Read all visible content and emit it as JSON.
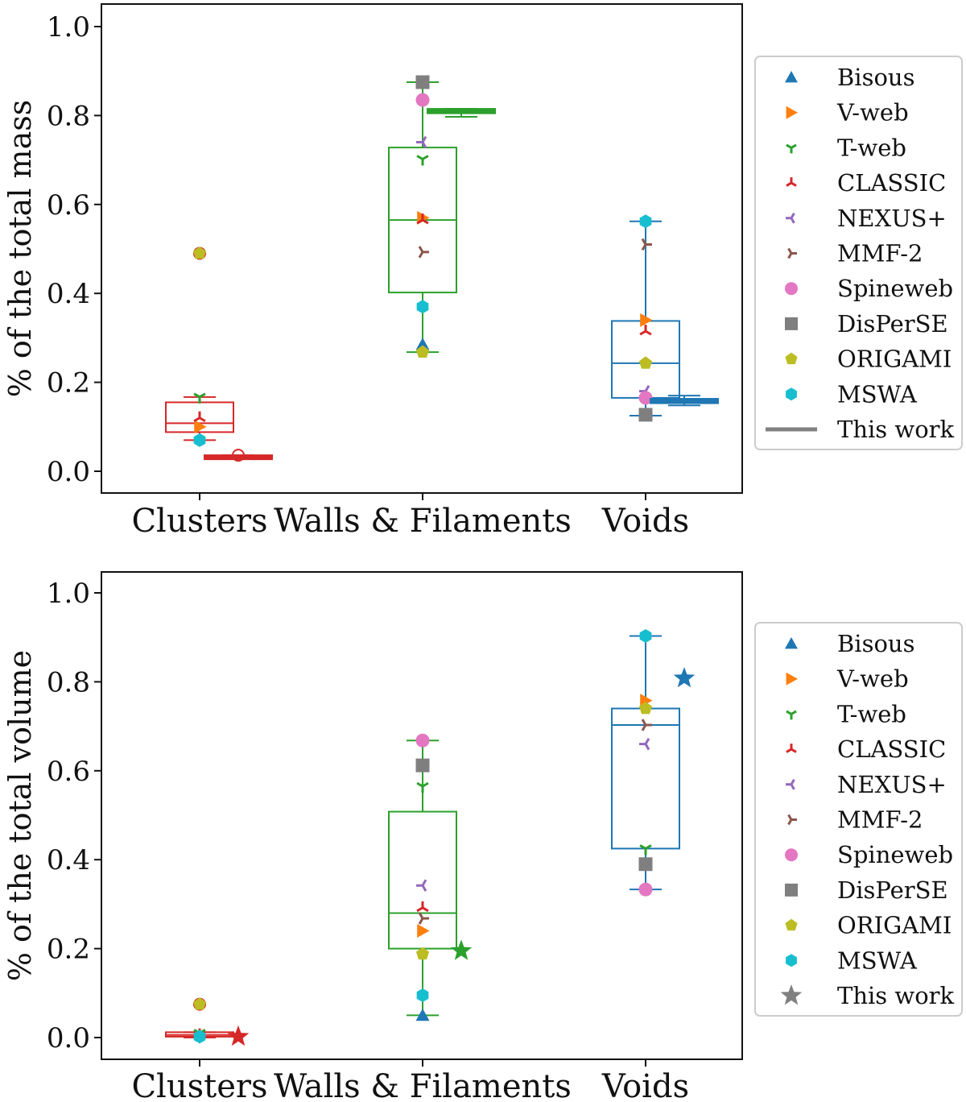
{
  "chart_data": [
    {
      "type": "box+scatter",
      "title": "",
      "ylabel": "% of the total mass",
      "xlabel": "",
      "ylim": [
        -0.05,
        1.05
      ],
      "yticks": [
        "0.0",
        "0.2",
        "0.4",
        "0.6",
        "0.8",
        "1.0"
      ],
      "categories": [
        "Clusters",
        "Walls & Filaments",
        "Voids"
      ],
      "category_colors": [
        "#d62728",
        "#2ca02c",
        "#1f77b4"
      ],
      "boxes": [
        {
          "category": "Clusters",
          "q1": 0.088,
          "median": 0.108,
          "q3": 0.155,
          "whisker_low": 0.07,
          "whisker_high": 0.167,
          "outliers": [
            0.49
          ]
        },
        {
          "category": "Walls & Filaments",
          "q1": 0.402,
          "median": 0.565,
          "q3": 0.728,
          "whisker_low": 0.268,
          "whisker_high": 0.875,
          "outliers": []
        },
        {
          "category": "Voids",
          "q1": 0.165,
          "median": 0.243,
          "q3": 0.338,
          "whisker_low": 0.125,
          "whisker_high": 0.562,
          "outliers": []
        }
      ],
      "methods": [
        {
          "name": "Bisous",
          "marker": "triangle-up",
          "color": "#1f77b4",
          "values": [
            null,
            0.285,
            null
          ]
        },
        {
          "name": "V-web",
          "marker": "triangle-right",
          "color": "#ff7f0e",
          "values": [
            0.1,
            0.57,
            0.34
          ]
        },
        {
          "name": "T-web",
          "marker": "tri-down",
          "color": "#2ca02c",
          "values": [
            0.167,
            0.702,
            null
          ]
        },
        {
          "name": "CLASSIC",
          "marker": "tri-up",
          "color": "#d62728",
          "values": [
            0.12,
            0.565,
            0.315
          ]
        },
        {
          "name": "NEXUS+",
          "marker": "tri-left",
          "color": "#9467bd",
          "values": [
            null,
            0.74,
            0.18
          ]
        },
        {
          "name": "MMF-2",
          "marker": "tri-right",
          "color": "#8c564b",
          "values": [
            null,
            0.493,
            0.51
          ]
        },
        {
          "name": "Spineweb",
          "marker": "octagon",
          "color": "#e377c2",
          "values": [
            null,
            0.835,
            0.165
          ]
        },
        {
          "name": "DisPerSE",
          "marker": "square",
          "color": "#7f7f7f",
          "values": [
            null,
            0.875,
            0.127
          ]
        },
        {
          "name": "ORIGAMI",
          "marker": "pentagon",
          "color": "#bcbd22",
          "values": [
            0.49,
            0.268,
            0.243
          ]
        },
        {
          "name": "MSWA",
          "marker": "hexagon",
          "color": "#17becf",
          "values": [
            0.07,
            0.37,
            0.562
          ]
        }
      ],
      "this_work": {
        "style": "box",
        "entries": [
          {
            "category": "Clusters",
            "q1": 0.03,
            "median": 0.033,
            "q3": 0.036,
            "whisker_low": 0.03,
            "whisker_high": 0.036,
            "outliers": [
              0.036
            ]
          },
          {
            "category": "Walls & Filaments",
            "q1": 0.805,
            "median": 0.81,
            "q3": 0.815,
            "whisker_low": 0.797,
            "whisker_high": 0.815,
            "outliers": []
          },
          {
            "category": "Voids",
            "q1": 0.153,
            "median": 0.158,
            "q3": 0.163,
            "whisker_low": 0.148,
            "whisker_high": 0.17,
            "outliers": []
          }
        ]
      },
      "legend": {
        "position": "right",
        "labels": [
          "Bisous",
          "V-web",
          "T-web",
          "CLASSIC",
          "NEXUS+",
          "MMF-2",
          "Spineweb",
          "DisPerSE",
          "ORIGAMI",
          "MSWA",
          "This work"
        ],
        "this_work_symbol": "line"
      }
    },
    {
      "type": "box+scatter",
      "title": "",
      "ylabel": "% of the total volume",
      "xlabel": "",
      "ylim": [
        -0.05,
        1.05
      ],
      "yticks": [
        "0.0",
        "0.2",
        "0.4",
        "0.6",
        "0.8",
        "1.0"
      ],
      "categories": [
        "Clusters",
        "Walls & Filaments",
        "Voids"
      ],
      "category_colors": [
        "#d62728",
        "#2ca02c",
        "#1f77b4"
      ],
      "boxes": [
        {
          "category": "Clusters",
          "q1": 0.002,
          "median": 0.006,
          "q3": 0.012,
          "whisker_low": 0.0,
          "whisker_high": 0.012,
          "outliers": [
            0.075
          ]
        },
        {
          "category": "Walls & Filaments",
          "q1": 0.2,
          "median": 0.28,
          "q3": 0.508,
          "whisker_low": 0.05,
          "whisker_high": 0.668,
          "outliers": []
        },
        {
          "category": "Voids",
          "q1": 0.425,
          "median": 0.703,
          "q3": 0.74,
          "whisker_low": 0.333,
          "whisker_high": 0.903,
          "outliers": []
        }
      ],
      "methods": [
        {
          "name": "Bisous",
          "marker": "triangle-up",
          "color": "#1f77b4",
          "values": [
            null,
            0.05,
            null
          ]
        },
        {
          "name": "V-web",
          "marker": "triangle-right",
          "color": "#ff7f0e",
          "values": [
            null,
            0.24,
            0.758
          ]
        },
        {
          "name": "T-web",
          "marker": "tri-down",
          "color": "#2ca02c",
          "values": [
            0.01,
            0.565,
            0.425
          ]
        },
        {
          "name": "CLASSIC",
          "marker": "tri-up",
          "color": "#d62728",
          "values": [
            0.006,
            0.292,
            null
          ]
        },
        {
          "name": "NEXUS+",
          "marker": "tri-left",
          "color": "#9467bd",
          "values": [
            null,
            0.342,
            0.66
          ]
        },
        {
          "name": "MMF-2",
          "marker": "tri-right",
          "color": "#8c564b",
          "values": [
            null,
            0.268,
            0.703
          ]
        },
        {
          "name": "Spineweb",
          "marker": "octagon",
          "color": "#e377c2",
          "values": [
            null,
            0.668,
            0.333
          ]
        },
        {
          "name": "DisPerSE",
          "marker": "square",
          "color": "#7f7f7f",
          "values": [
            null,
            0.612,
            0.39
          ]
        },
        {
          "name": "ORIGAMI",
          "marker": "pentagon",
          "color": "#bcbd22",
          "values": [
            0.075,
            0.188,
            0.74
          ]
        },
        {
          "name": "MSWA",
          "marker": "hexagon",
          "color": "#17becf",
          "values": [
            0.002,
            0.095,
            0.903
          ]
        }
      ],
      "this_work": {
        "style": "star",
        "entries": [
          {
            "category": "Clusters",
            "value": 0.002
          },
          {
            "category": "Walls & Filaments",
            "value": 0.195
          },
          {
            "category": "Voids",
            "value": 0.808
          }
        ]
      },
      "legend": {
        "position": "right",
        "labels": [
          "Bisous",
          "V-web",
          "T-web",
          "CLASSIC",
          "NEXUS+",
          "MMF-2",
          "Spineweb",
          "DisPerSE",
          "ORIGAMI",
          "MSWA",
          "This work"
        ],
        "this_work_symbol": "star"
      }
    }
  ]
}
